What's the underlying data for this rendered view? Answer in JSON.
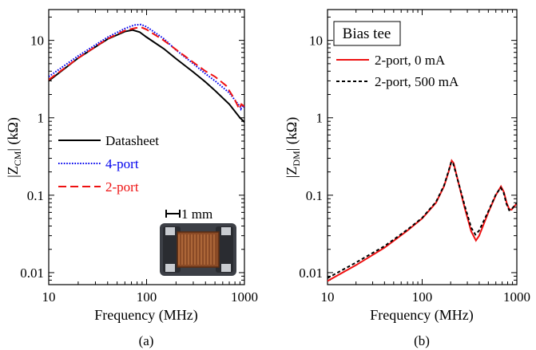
{
  "colors": {
    "datasheet": "#000000",
    "four_port": "#0000ee",
    "two_port": "#ee1111",
    "bias_0": "#ee1111",
    "bias_500": "#000000"
  },
  "chart_data": [
    {
      "type": "line",
      "caption": "(a)",
      "xlabel": "Frequency (MHz)",
      "ylabel": {
        "main": "|Z",
        "sub": "CM",
        "tail": "| (kΩ)"
      },
      "xscale": "log",
      "yscale": "log",
      "xlim": [
        10,
        1000
      ],
      "ylim": [
        0.007,
        25
      ],
      "x_ticks": [
        {
          "value": 10,
          "label": "10"
        },
        {
          "value": 100,
          "label": "100"
        },
        {
          "value": 1000,
          "label": "1000"
        }
      ],
      "y_ticks": [
        {
          "value": 0.01,
          "label": "0.01"
        },
        {
          "value": 0.1,
          "label": "0.1"
        },
        {
          "value": 1,
          "label": "1"
        },
        {
          "value": 10,
          "label": "10"
        }
      ],
      "legend": {
        "placement": "left-middle"
      },
      "inset": {
        "scale_label": "1 mm",
        "icon": "common-mode-choke-photo"
      },
      "series": [
        {
          "name": "Datasheet",
          "style": "solid",
          "color_key": "datasheet",
          "points": [
            [
              10,
              3.0
            ],
            [
              20,
              5.9
            ],
            [
              40,
              10.4
            ],
            [
              60,
              13.0
            ],
            [
              72,
              13.6
            ],
            [
              85,
              12.8
            ],
            [
              100,
              11.0
            ],
            [
              150,
              7.8
            ],
            [
              200,
              5.8
            ],
            [
              300,
              3.9
            ],
            [
              400,
              2.9
            ],
            [
              500,
              2.25
            ],
            [
              700,
              1.5
            ],
            [
              900,
              1.0
            ],
            [
              1000,
              0.88
            ]
          ]
        },
        {
          "name": "4-port",
          "style": "dotted",
          "color_key": "four_port",
          "points": [
            [
              10,
              3.4
            ],
            [
              20,
              6.3
            ],
            [
              40,
              11.0
            ],
            [
              60,
              14.2
            ],
            [
              75,
              15.8
            ],
            [
              88,
              16.0
            ],
            [
              100,
              15.0
            ],
            [
              150,
              10.5
            ],
            [
              200,
              7.5
            ],
            [
              300,
              5.0
            ],
            [
              400,
              3.7
            ],
            [
              500,
              3.0
            ],
            [
              700,
              2.1
            ],
            [
              900,
              1.4
            ],
            [
              920,
              1.3
            ],
            [
              960,
              1.45
            ],
            [
              1000,
              1.35
            ]
          ]
        },
        {
          "name": "2-port",
          "style": "dashed",
          "color_key": "two_port",
          "points": [
            [
              10,
              3.1
            ],
            [
              20,
              5.9
            ],
            [
              40,
              10.5
            ],
            [
              60,
              13.4
            ],
            [
              78,
              14.5
            ],
            [
              90,
              14.6
            ],
            [
              100,
              13.8
            ],
            [
              150,
              10.0
            ],
            [
              200,
              7.6
            ],
            [
              300,
              5.2
            ],
            [
              400,
              4.0
            ],
            [
              500,
              3.4
            ],
            [
              650,
              2.6
            ],
            [
              780,
              1.8
            ],
            [
              850,
              1.45
            ],
            [
              880,
              1.3
            ],
            [
              930,
              1.5
            ],
            [
              1000,
              1.4
            ]
          ]
        }
      ]
    },
    {
      "type": "line",
      "caption": "(b)",
      "xlabel": "Frequency (MHz)",
      "ylabel": {
        "main": "|Z",
        "sub": "DM",
        "tail": "| (kΩ)"
      },
      "xscale": "log",
      "yscale": "log",
      "xlim": [
        10,
        1000
      ],
      "ylim": [
        0.007,
        25
      ],
      "x_ticks": [
        {
          "value": 10,
          "label": "10"
        },
        {
          "value": 100,
          "label": "100"
        },
        {
          "value": 1000,
          "label": "1000"
        }
      ],
      "y_ticks": [
        {
          "value": 0.01,
          "label": "0.01"
        },
        {
          "value": 0.1,
          "label": "0.1"
        },
        {
          "value": 1,
          "label": "1"
        },
        {
          "value": 10,
          "label": "10"
        }
      ],
      "box_label": "Bias tee",
      "legend": {
        "placement": "top-right"
      },
      "series": [
        {
          "name": "2-port, 0 mA",
          "style": "solid",
          "color_key": "bias_0",
          "points": [
            [
              10,
              0.0078
            ],
            [
              20,
              0.0125
            ],
            [
              40,
              0.021
            ],
            [
              70,
              0.035
            ],
            [
              100,
              0.05
            ],
            [
              140,
              0.08
            ],
            [
              170,
              0.13
            ],
            [
              190,
              0.2
            ],
            [
              205,
              0.28
            ],
            [
              215,
              0.26
            ],
            [
              240,
              0.15
            ],
            [
              280,
              0.07
            ],
            [
              330,
              0.034
            ],
            [
              370,
              0.026
            ],
            [
              400,
              0.03
            ],
            [
              500,
              0.06
            ],
            [
              600,
              0.1
            ],
            [
              680,
              0.13
            ],
            [
              730,
              0.11
            ],
            [
              780,
              0.08
            ],
            [
              830,
              0.066
            ],
            [
              880,
              0.065
            ],
            [
              950,
              0.073
            ],
            [
              1000,
              0.078
            ]
          ]
        },
        {
          "name": "2-port, 500 mA",
          "style": "dashed",
          "color_key": "bias_500",
          "points": [
            [
              10,
              0.0085
            ],
            [
              20,
              0.0135
            ],
            [
              40,
              0.022
            ],
            [
              70,
              0.036
            ],
            [
              100,
              0.051
            ],
            [
              140,
              0.082
            ],
            [
              170,
              0.133
            ],
            [
              190,
              0.205
            ],
            [
              203,
              0.27
            ],
            [
              213,
              0.255
            ],
            [
              240,
              0.15
            ],
            [
              280,
              0.075
            ],
            [
              330,
              0.038
            ],
            [
              365,
              0.031
            ],
            [
              400,
              0.035
            ],
            [
              500,
              0.062
            ],
            [
              600,
              0.102
            ],
            [
              675,
              0.125
            ],
            [
              725,
              0.108
            ],
            [
              775,
              0.078
            ],
            [
              830,
              0.064
            ],
            [
              880,
              0.066
            ],
            [
              950,
              0.074
            ],
            [
              1000,
              0.079
            ]
          ]
        }
      ]
    }
  ]
}
